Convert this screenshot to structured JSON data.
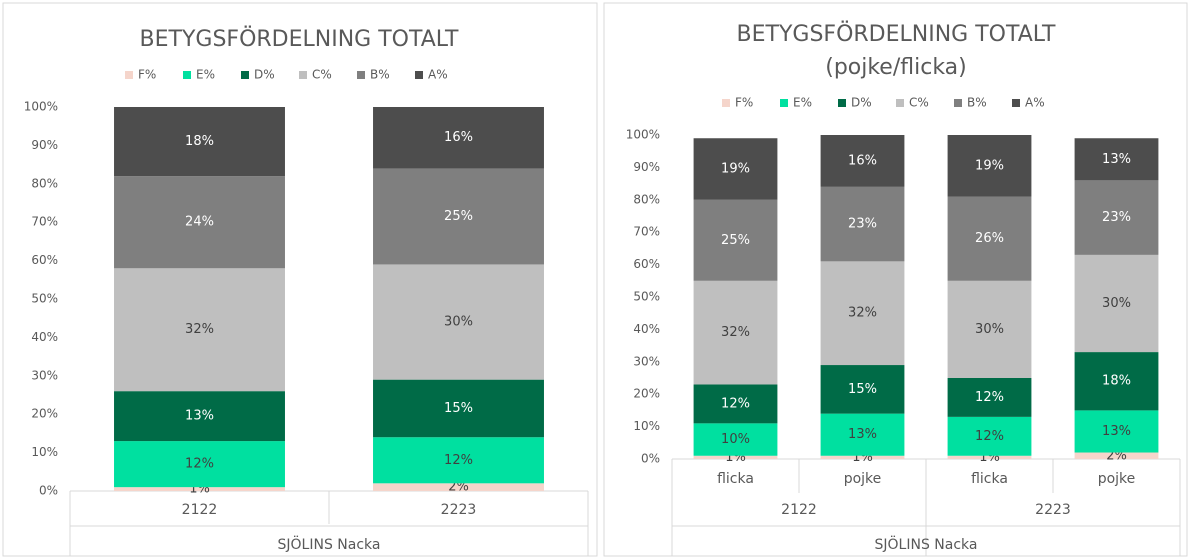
{
  "chart_data": [
    {
      "type": "stacked_bar",
      "title": [
        "BETYGSFÖRDELNING TOTALT"
      ],
      "categories": [
        "2122",
        "2223"
      ],
      "groups": [],
      "x_group_label": "SJÖLINS Nacka",
      "ylim": [
        0,
        100
      ],
      "yticks": [
        {
          "value": 0,
          "label": "0%"
        },
        {
          "value": 10,
          "label": "10%"
        },
        {
          "value": 20,
          "label": "20%"
        },
        {
          "value": 30,
          "label": "30%"
        },
        {
          "value": 40,
          "label": "40%"
        },
        {
          "value": 50,
          "label": "50%"
        },
        {
          "value": 60,
          "label": "60%"
        },
        {
          "value": 70,
          "label": "70%"
        },
        {
          "value": 80,
          "label": "80%"
        },
        {
          "value": 90,
          "label": "90%"
        },
        {
          "value": 100,
          "label": "100%"
        }
      ],
      "series": [
        {
          "name": "F%",
          "color": "#f5d5cb",
          "label_color": "#404040",
          "values": [
            1,
            2
          ],
          "value_labels": [
            "1%",
            "2%"
          ]
        },
        {
          "name": "E%",
          "color": "#00e0a0",
          "label_color": "#404040",
          "values": [
            12,
            12
          ],
          "value_labels": [
            "12%",
            "12%"
          ]
        },
        {
          "name": "D%",
          "color": "#006b47",
          "label_color": "#ffffff",
          "values": [
            13,
            15
          ],
          "value_labels": [
            "13%",
            "15%"
          ]
        },
        {
          "name": "C%",
          "color": "#bfbfbf",
          "label_color": "#404040",
          "values": [
            32,
            30
          ],
          "value_labels": [
            "32%",
            "30%"
          ]
        },
        {
          "name": "B%",
          "color": "#7f7f7f",
          "label_color": "#ffffff",
          "values": [
            24,
            25
          ],
          "value_labels": [
            "24%",
            "25%"
          ]
        },
        {
          "name": "A%",
          "color": "#4d4d4d",
          "label_color": "#ffffff",
          "values": [
            18,
            16
          ],
          "value_labels": [
            "18%",
            "16%"
          ]
        }
      ]
    },
    {
      "type": "stacked_bar",
      "title": [
        "BETYGSFÖRDELNING TOTALT",
        "(pojke/flicka)"
      ],
      "categories": [
        "flicka",
        "pojke",
        "flicka",
        "pojke"
      ],
      "groups": [
        "2122",
        "2223"
      ],
      "x_group_label": "SJÖLINS Nacka",
      "ylim": [
        0,
        100
      ],
      "yticks": [
        {
          "value": 0,
          "label": "0%"
        },
        {
          "value": 10,
          "label": "10%"
        },
        {
          "value": 20,
          "label": "20%"
        },
        {
          "value": 30,
          "label": "30%"
        },
        {
          "value": 40,
          "label": "40%"
        },
        {
          "value": 50,
          "label": "50%"
        },
        {
          "value": 60,
          "label": "60%"
        },
        {
          "value": 70,
          "label": "70%"
        },
        {
          "value": 80,
          "label": "80%"
        },
        {
          "value": 90,
          "label": "90%"
        },
        {
          "value": 100,
          "label": "100%"
        }
      ],
      "series": [
        {
          "name": "F%",
          "color": "#f5d5cb",
          "label_color": "#404040",
          "values": [
            1,
            1,
            1,
            2
          ],
          "value_labels": [
            "1%",
            "1%",
            "1%",
            "2%"
          ]
        },
        {
          "name": "E%",
          "color": "#00e0a0",
          "label_color": "#404040",
          "values": [
            10,
            13,
            12,
            13
          ],
          "value_labels": [
            "10%",
            "13%",
            "12%",
            "13%"
          ]
        },
        {
          "name": "D%",
          "color": "#006b47",
          "label_color": "#ffffff",
          "values": [
            12,
            15,
            12,
            18
          ],
          "value_labels": [
            "12%",
            "15%",
            "12%",
            "18%"
          ]
        },
        {
          "name": "C%",
          "color": "#bfbfbf",
          "label_color": "#404040",
          "values": [
            32,
            32,
            30,
            30
          ],
          "value_labels": [
            "32%",
            "32%",
            "30%",
            "30%"
          ]
        },
        {
          "name": "B%",
          "color": "#7f7f7f",
          "label_color": "#ffffff",
          "values": [
            25,
            23,
            26,
            23
          ],
          "value_labels": [
            "25%",
            "23%",
            "26%",
            "23%"
          ]
        },
        {
          "name": "A%",
          "color": "#4d4d4d",
          "label_color": "#ffffff",
          "values": [
            19,
            16,
            19,
            13
          ],
          "value_labels": [
            "19%",
            "16%",
            "19%",
            "13%"
          ]
        }
      ]
    }
  ]
}
